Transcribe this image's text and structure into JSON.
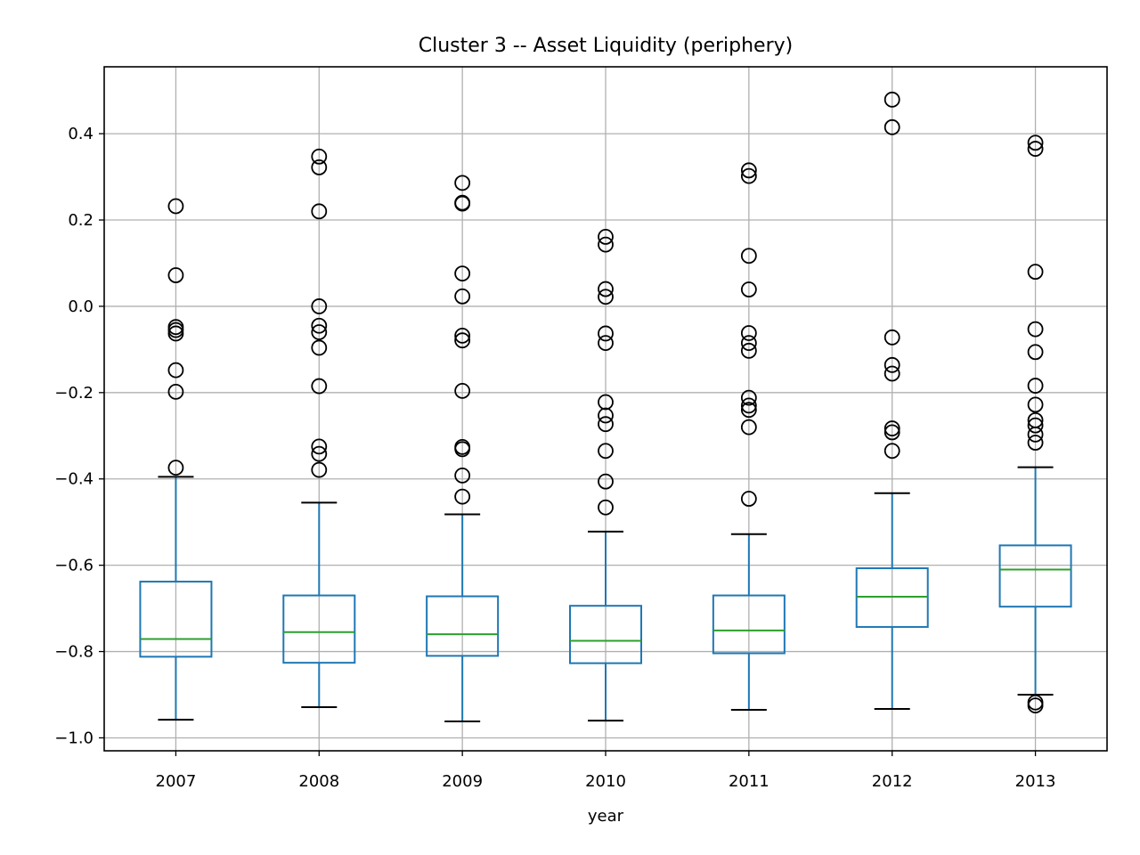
{
  "chart_data": {
    "type": "boxplot",
    "title": "Cluster 3 -- Asset Liquidity (periphery)",
    "xlabel": "year",
    "ylabel": "",
    "ylim": [
      -1.03,
      0.555
    ],
    "yticks": [
      0.4,
      0.2,
      0.0,
      -0.2,
      -0.4,
      -0.6,
      -0.8,
      -1.0
    ],
    "ytick_labels": [
      "0.4",
      "0.2",
      "0.0",
      "−0.2",
      "−0.4",
      "−0.6",
      "−0.8",
      "−1.0"
    ],
    "grid": true,
    "colors": {
      "box": "#1f77b4",
      "median": "#2ca02c",
      "cap": "#000000",
      "flier": "#000000",
      "grid": "#b0b0b0"
    },
    "categories": [
      "2007",
      "2008",
      "2009",
      "2010",
      "2011",
      "2012",
      "2013"
    ],
    "boxes": [
      {
        "label": "2007",
        "whisker_low": -0.958,
        "q1": -0.812,
        "median": -0.771,
        "q3": -0.638,
        "whisker_high": -0.395,
        "fliers": [
          0.232,
          0.072,
          -0.048,
          -0.055,
          -0.063,
          -0.148,
          -0.198,
          -0.374
        ]
      },
      {
        "label": "2008",
        "whisker_low": -0.929,
        "q1": -0.826,
        "median": -0.755,
        "q3": -0.67,
        "whisker_high": -0.455,
        "fliers": [
          0.347,
          0.322,
          0.22,
          0.0,
          -0.045,
          -0.06,
          -0.096,
          -0.185,
          -0.325,
          -0.342,
          -0.379
        ]
      },
      {
        "label": "2009",
        "whisker_low": -0.962,
        "q1": -0.81,
        "median": -0.76,
        "q3": -0.672,
        "whisker_high": -0.482,
        "fliers": [
          0.286,
          0.24,
          0.238,
          0.076,
          0.023,
          -0.068,
          -0.079,
          -0.196,
          -0.326,
          -0.331,
          -0.392,
          -0.441
        ]
      },
      {
        "label": "2010",
        "whisker_low": -0.96,
        "q1": -0.827,
        "median": -0.775,
        "q3": -0.694,
        "whisker_high": -0.522,
        "fliers": [
          0.161,
          0.143,
          0.04,
          0.022,
          -0.063,
          -0.085,
          -0.222,
          -0.253,
          -0.273,
          -0.335,
          -0.406,
          -0.466
        ]
      },
      {
        "label": "2011",
        "whisker_low": -0.935,
        "q1": -0.804,
        "median": -0.751,
        "q3": -0.67,
        "whisker_high": -0.528,
        "fliers": [
          0.315,
          0.302,
          0.117,
          0.039,
          -0.062,
          -0.085,
          -0.103,
          -0.212,
          -0.23,
          -0.24,
          -0.28,
          -0.446
        ]
      },
      {
        "label": "2012",
        "whisker_low": -0.933,
        "q1": -0.743,
        "median": -0.673,
        "q3": -0.607,
        "whisker_high": -0.433,
        "fliers": [
          0.479,
          0.415,
          -0.072,
          -0.136,
          -0.156,
          -0.283,
          -0.292,
          -0.335
        ]
      },
      {
        "label": "2013",
        "whisker_low": -0.9,
        "q1": -0.696,
        "median": -0.61,
        "q3": -0.554,
        "whisker_high": -0.373,
        "fliers": [
          0.379,
          0.365,
          0.08,
          -0.053,
          -0.106,
          -0.184,
          -0.228,
          -0.264,
          -0.276,
          -0.297,
          -0.316,
          -0.918,
          -0.925
        ]
      }
    ]
  }
}
